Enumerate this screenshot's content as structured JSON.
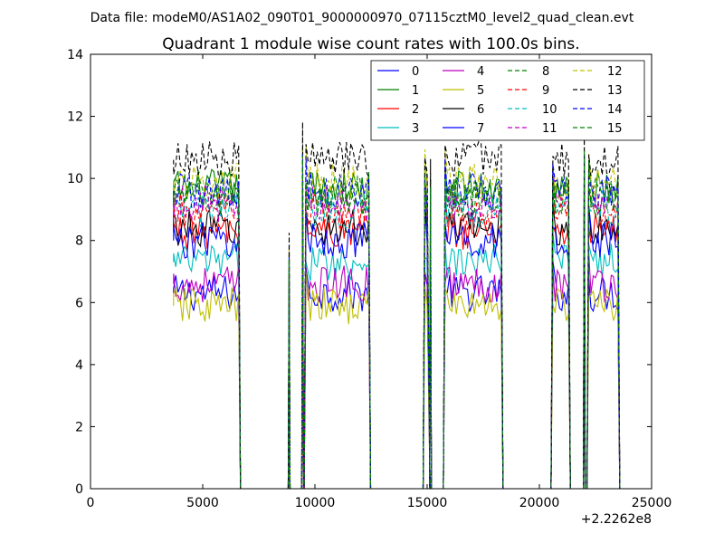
{
  "header": {
    "data_file": "Data file: modeM0/AS1A02_090T01_9000000970_07115cztM0_level2_quad_clean.evt"
  },
  "chart_data": {
    "type": "line",
    "title": "Quadrant 1 module wise count rates with 100.0s bins.",
    "xlabel": "",
    "ylabel": "",
    "x_offset_label": "+2.2262e8",
    "xlim": [
      0,
      25000
    ],
    "ylim": [
      0,
      14
    ],
    "x_ticks": [
      0,
      5000,
      10000,
      15000,
      20000,
      25000
    ],
    "y_ticks": [
      0,
      2,
      4,
      6,
      8,
      10,
      12,
      14
    ],
    "grid": false,
    "legend_position": "top-right",
    "legend_columns": 4,
    "segments": [
      {
        "start": 3700,
        "end": 6600
      },
      {
        "start": 9600,
        "end": 12400
      },
      {
        "start": 14900,
        "end": 15050
      },
      {
        "start": 15800,
        "end": 18300
      },
      {
        "start": 20600,
        "end": 21300
      },
      {
        "start": 22200,
        "end": 23500
      }
    ],
    "spikes": [
      {
        "x": 8850,
        "level_factor": 0.75
      },
      {
        "x": 9450,
        "level_factor": 1.1
      },
      {
        "x": 15150,
        "level_factor": 1.0
      },
      {
        "x": 22000,
        "level_factor": 1.1
      }
    ],
    "series": [
      {
        "name": "0",
        "color": "#0000ff",
        "dash": "solid",
        "level": 6.3
      },
      {
        "name": "1",
        "color": "#008000",
        "dash": "solid",
        "level": 9.7
      },
      {
        "name": "2",
        "color": "#ff0000",
        "dash": "solid",
        "level": 8.3
      },
      {
        "name": "3",
        "color": "#00bfbf",
        "dash": "solid",
        "level": 7.3
      },
      {
        "name": "4",
        "color": "#bf00bf",
        "dash": "solid",
        "level": 6.6
      },
      {
        "name": "5",
        "color": "#bfbf00",
        "dash": "solid",
        "level": 5.9
      },
      {
        "name": "6",
        "color": "#000000",
        "dash": "solid",
        "level": 8.4
      },
      {
        "name": "7",
        "color": "#0000ff",
        "dash": "solid",
        "level": 8.0
      },
      {
        "name": "8",
        "color": "#008000",
        "dash": "dashed",
        "level": 9.3
      },
      {
        "name": "9",
        "color": "#ff0000",
        "dash": "dashed",
        "level": 8.9
      },
      {
        "name": "10",
        "color": "#00bfbf",
        "dash": "dashed",
        "level": 9.0
      },
      {
        "name": "11",
        "color": "#bf00bf",
        "dash": "dashed",
        "level": 9.2
      },
      {
        "name": "12",
        "color": "#bfbf00",
        "dash": "dashed",
        "level": 9.9
      },
      {
        "name": "13",
        "color": "#000000",
        "dash": "dashed",
        "level": 10.6
      },
      {
        "name": "14",
        "color": "#0000ff",
        "dash": "dashed",
        "level": 9.6
      },
      {
        "name": "15",
        "color": "#008000",
        "dash": "dashed",
        "level": 9.5
      }
    ]
  }
}
